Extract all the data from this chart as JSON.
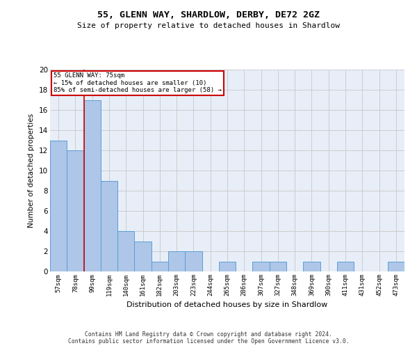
{
  "title": "55, GLENN WAY, SHARDLOW, DERBY, DE72 2GZ",
  "subtitle": "Size of property relative to detached houses in Shardlow",
  "xlabel": "Distribution of detached houses by size in Shardlow",
  "ylabel": "Number of detached properties",
  "categories": [
    "57sqm",
    "78sqm",
    "99sqm",
    "119sqm",
    "140sqm",
    "161sqm",
    "182sqm",
    "203sqm",
    "223sqm",
    "244sqm",
    "265sqm",
    "286sqm",
    "307sqm",
    "327sqm",
    "348sqm",
    "369sqm",
    "390sqm",
    "411sqm",
    "431sqm",
    "452sqm",
    "473sqm"
  ],
  "values": [
    13,
    12,
    17,
    9,
    4,
    3,
    1,
    2,
    2,
    0,
    1,
    0,
    1,
    1,
    0,
    1,
    0,
    1,
    0,
    0,
    1
  ],
  "bar_color": "#aec6e8",
  "bar_edge_color": "#5a9fd4",
  "vline_x_index": 1.5,
  "vline_color": "#cc0000",
  "box_text_line1": "55 GLENN WAY: 75sqm",
  "box_text_line2": "← 15% of detached houses are smaller (10)",
  "box_text_line3": "85% of semi-detached houses are larger (58) →",
  "box_color": "#cc0000",
  "ylim": [
    0,
    20
  ],
  "yticks": [
    0,
    2,
    4,
    6,
    8,
    10,
    12,
    14,
    16,
    18,
    20
  ],
  "grid_color": "#cccccc",
  "bg_color": "#e8eef8",
  "footer_line1": "Contains HM Land Registry data © Crown copyright and database right 2024.",
  "footer_line2": "Contains public sector information licensed under the Open Government Licence v3.0."
}
